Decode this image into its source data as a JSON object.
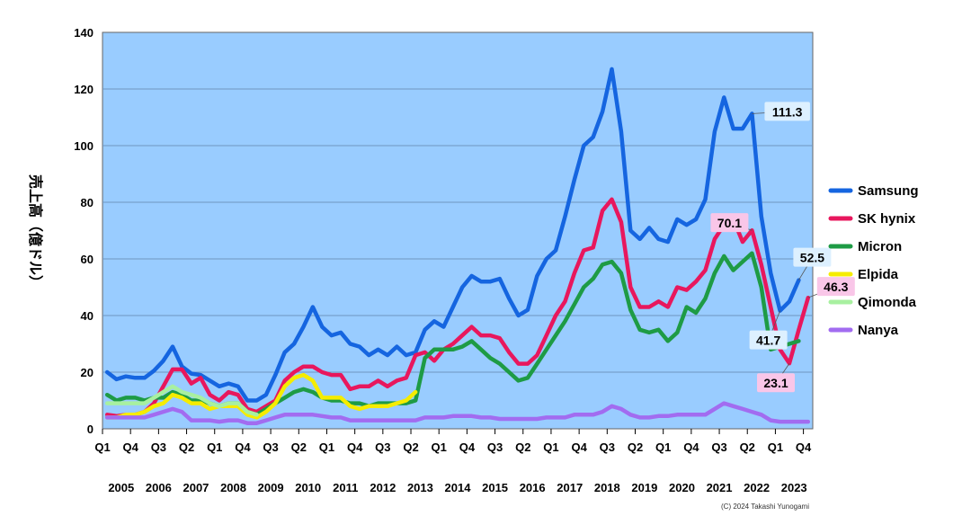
{
  "chart_data": {
    "type": "line",
    "title": "",
    "ylabel": "売上高（億ドル）",
    "xlabel": "",
    "ylim": [
      0,
      140
    ],
    "yticks": [
      0,
      20,
      40,
      60,
      80,
      100,
      120,
      140
    ],
    "grid": true,
    "legend_position": "right",
    "x_start": "2005 Q1",
    "x_end": "2023 Q4",
    "quarter_tick_labels": [
      "Q1",
      "Q4",
      "Q3",
      "Q2",
      "Q1",
      "Q4",
      "Q3",
      "Q2",
      "Q1",
      "Q4",
      "Q3",
      "Q2",
      "Q1",
      "Q4",
      "Q3",
      "Q2",
      "Q1",
      "Q4",
      "Q3",
      "Q2",
      "Q1",
      "Q4",
      "Q3",
      "Q2",
      "Q1",
      "Q4"
    ],
    "years": [
      "2005",
      "2006",
      "2007",
      "2008",
      "2009",
      "2010",
      "2011",
      "2012",
      "2013",
      "2014",
      "2015",
      "2016",
      "2017",
      "2018",
      "2019",
      "2020",
      "2021",
      "2022",
      "2023"
    ],
    "colors": {
      "plot_bg": "#99CCFF"
    },
    "series": [
      {
        "name": "Samsung",
        "color": "#1565E0",
        "start": 0,
        "values": [
          20,
          17.5,
          18.5,
          18,
          18,
          20.5,
          24,
          29,
          22,
          19.5,
          19,
          17,
          15,
          16,
          15,
          10,
          10,
          12,
          19,
          27,
          30,
          36,
          43,
          36,
          33,
          34,
          30,
          29,
          26,
          28,
          26,
          29,
          26,
          27,
          35,
          38,
          36,
          43,
          50,
          54,
          52,
          52,
          53,
          46,
          40,
          42,
          54,
          60,
          63,
          75,
          88,
          100,
          103,
          112,
          127,
          105,
          70,
          67,
          71,
          67,
          66,
          74,
          72,
          74,
          81,
          105,
          117,
          106,
          106,
          111.3,
          75,
          55,
          41.7,
          45,
          52.5
        ]
      },
      {
        "name": "SK hynix",
        "color": "#E8175D",
        "start": 0,
        "values": [
          5,
          4.5,
          5,
          5,
          6,
          9,
          15,
          21,
          21,
          16,
          18,
          12,
          10,
          13,
          12,
          7,
          6,
          8,
          10,
          17,
          20,
          22,
          22,
          20,
          19,
          19,
          14,
          15,
          15,
          17,
          15,
          17,
          18,
          26,
          27,
          24,
          28,
          30,
          33,
          36,
          33,
          33,
          32,
          27,
          23,
          23,
          26,
          33,
          40,
          45,
          55,
          63,
          64,
          77,
          81,
          73,
          50,
          43,
          43,
          45,
          43,
          50,
          49,
          52,
          56,
          67,
          72,
          74,
          66,
          70.1,
          58,
          43,
          28,
          23.1,
          35,
          46.3
        ]
      },
      {
        "name": "Micron",
        "color": "#1E9B45",
        "start": 0,
        "values": [
          12,
          10,
          11,
          11,
          10,
          11,
          11,
          13,
          12,
          10,
          10,
          9,
          8,
          9,
          9,
          6,
          5,
          7,
          9,
          11,
          13,
          14,
          13,
          11,
          10,
          10,
          9,
          9,
          8,
          9,
          9,
          9,
          9,
          10,
          25,
          28,
          28,
          28,
          29,
          31,
          28,
          25,
          23,
          20,
          17,
          18,
          23,
          28,
          33,
          38,
          44,
          50,
          53,
          58,
          59,
          55,
          42,
          35,
          34,
          35,
          31,
          34,
          43,
          41,
          46,
          55,
          61,
          56,
          59,
          62,
          50,
          28,
          29,
          30,
          31
        ]
      },
      {
        "name": "Elpida",
        "color": "#F5EC00",
        "start": 0,
        "values": [
          4,
          4,
          5,
          5,
          6,
          8,
          9,
          12,
          11,
          9,
          9,
          7,
          8,
          8,
          8,
          5,
          4,
          6,
          9,
          15,
          18,
          19,
          17,
          11,
          11,
          11,
          8,
          7,
          8,
          8,
          8,
          9,
          10,
          13
        ]
      },
      {
        "name": "Qimonda",
        "color": "#A8F0A0",
        "start": 0,
        "values": [
          9,
          9,
          9,
          9,
          9,
          11,
          13,
          15,
          13,
          12,
          11,
          9,
          8,
          9,
          9,
          6,
          5
        ]
      },
      {
        "name": "Nanya",
        "color": "#A26CF0",
        "start": 0,
        "values": [
          4,
          4,
          4,
          4,
          4,
          5,
          6,
          7,
          6,
          3,
          3,
          3,
          2.5,
          3,
          3,
          2,
          2,
          3,
          4,
          5,
          5,
          5,
          5,
          4.5,
          4,
          4,
          3,
          3,
          3,
          3,
          3,
          3,
          3,
          3,
          4,
          4,
          4,
          4.5,
          4.5,
          4.5,
          4,
          4,
          3.5,
          3.5,
          3.5,
          3.5,
          3.5,
          4,
          4,
          4,
          5,
          5,
          5,
          6,
          8,
          7,
          5,
          4,
          4,
          4.5,
          4.5,
          5,
          5,
          5,
          5,
          7,
          9,
          8,
          7,
          6,
          5,
          3,
          2.5,
          2.5,
          2.5,
          2.5
        ]
      }
    ],
    "annotations": [
      {
        "series": "Samsung",
        "quarter_index": 69,
        "text": "111.3",
        "bg": "#DDF0FF"
      },
      {
        "series": "SK hynix",
        "quarter_index": 69,
        "text": "70.1",
        "bg": "#F9C6E8"
      },
      {
        "series": "Samsung",
        "quarter_index": 74,
        "text": "52.5",
        "bg": "#DDF0FF"
      },
      {
        "series": "SK hynix",
        "quarter_index": 75,
        "text": "46.3",
        "bg": "#F9C6E8"
      },
      {
        "series": "Samsung",
        "quarter_index": 72,
        "text": "41.7",
        "bg": "#DDF0FF"
      },
      {
        "series": "SK hynix",
        "quarter_index": 73,
        "text": "23.1",
        "bg": "#F9C6E8"
      }
    ],
    "credit": "(C) 2024 Takashi Yunogami"
  }
}
